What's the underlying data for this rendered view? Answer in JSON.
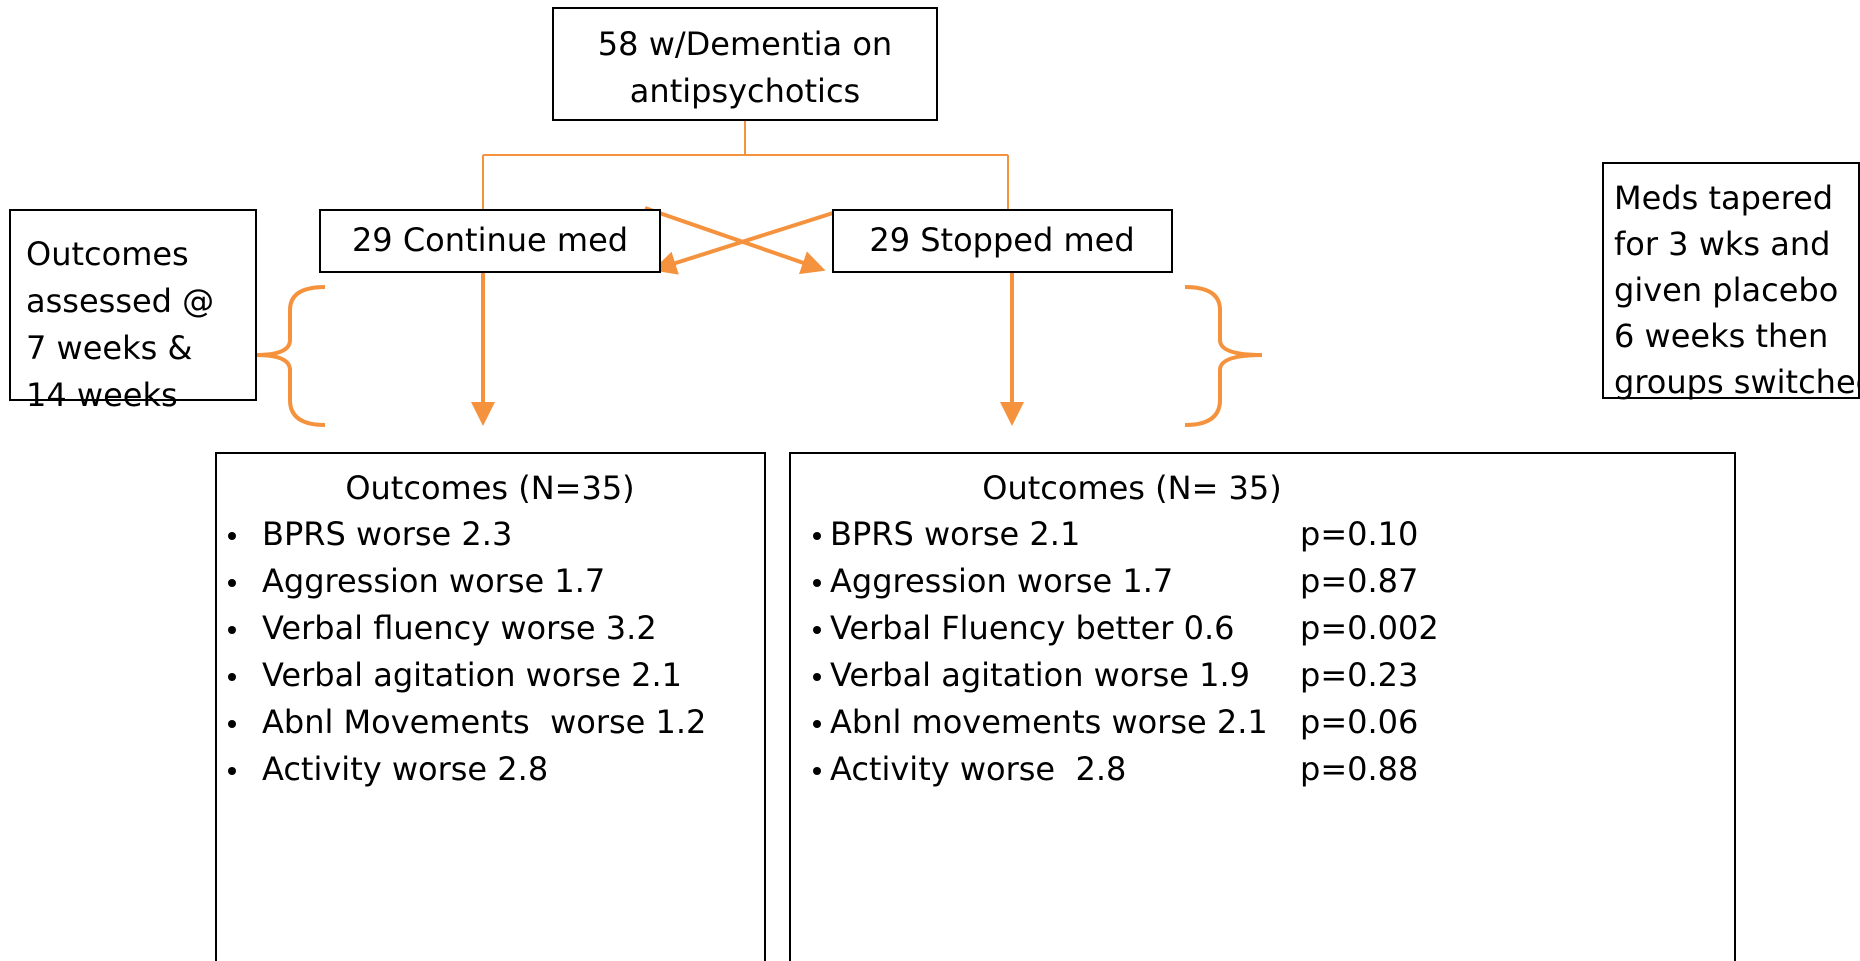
{
  "top_box": {
    "lines": [
      "58 w/Dementia on",
      "antipsychotics"
    ]
  },
  "groups": [
    {
      "label": "29 Continue med"
    },
    {
      "label": "29 Stopped med"
    }
  ],
  "notes": {
    "left": [
      "Outcomes",
      "assessed @",
      "7 weeks &",
      "14 weeks"
    ],
    "right": [
      "Meds tapered",
      "for 3 wks and",
      "given placebo",
      "6 weeks then",
      "groups switched"
    ]
  },
  "outcomes": [
    {
      "title": "Outcomes (N=35)",
      "items": [
        {
          "text": "BPRS worse 2.3"
        },
        {
          "text": "Aggression worse 1.7"
        },
        {
          "text": "Verbal fluency worse 3.2"
        },
        {
          "text": "Verbal agitation worse 2.1"
        },
        {
          "text": "Abnl Movements  worse 1.2"
        },
        {
          "text": "Activity worse 2.8"
        }
      ]
    },
    {
      "title": "Outcomes (N= 35)",
      "items": [
        {
          "text": "BPRS worse 2.1",
          "p": "p=0.10"
        },
        {
          "text": "Aggression worse 1.7",
          "p": "p=0.87"
        },
        {
          "text": "Verbal Fluency better 0.6",
          "p": "p=0.002"
        },
        {
          "text": "Verbal agitation worse 1.9",
          "p": "p=0.23"
        },
        {
          "text": "Abnl movements worse 2.1",
          "p": "p=0.06"
        },
        {
          "text": "Activity worse  2.8",
          "p": "p=0.88"
        }
      ]
    }
  ]
}
